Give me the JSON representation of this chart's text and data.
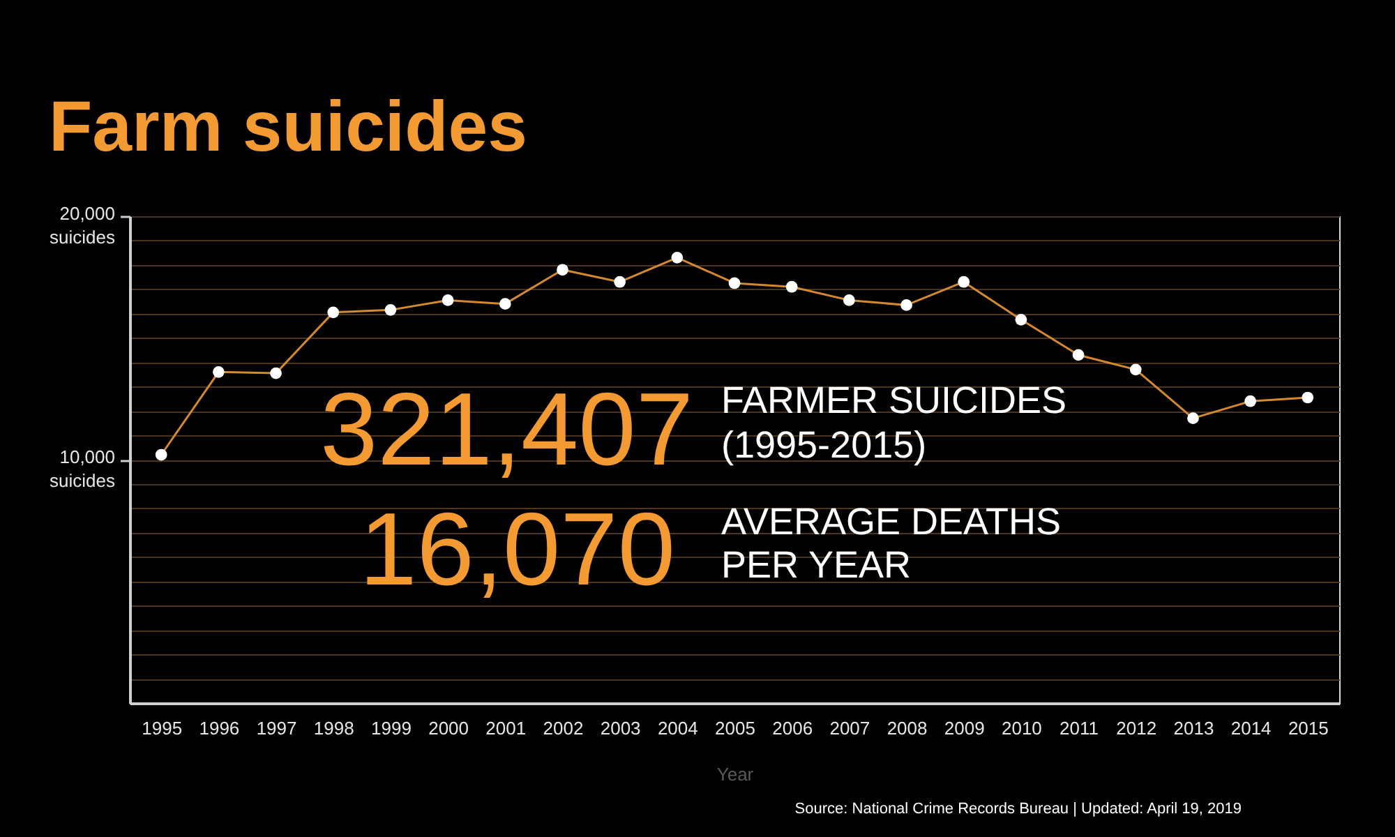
{
  "chart_data": {
    "type": "line",
    "title": "Farm suicides",
    "xlabel": "Year",
    "categories": [
      "1995",
      "1996",
      "1997",
      "1998",
      "1999",
      "2000",
      "2001",
      "2002",
      "2003",
      "2004",
      "2005",
      "2006",
      "2007",
      "2008",
      "2009",
      "2010",
      "2011",
      "2012",
      "2013",
      "2014",
      "2015"
    ],
    "values": [
      10200,
      13600,
      13550,
      16050,
      16150,
      16550,
      16400,
      17800,
      17300,
      18300,
      17250,
      17100,
      16550,
      16350,
      17300,
      15750,
      14300,
      13700,
      11700,
      12400,
      12550
    ],
    "color": "#d4892f",
    "marker": "circle",
    "grid": "y",
    "ylim": [
      0,
      20000
    ],
    "yticks": [
      {
        "value": 1000,
        "label": null
      },
      {
        "value": 2000,
        "label": null
      },
      {
        "value": 3000,
        "label": null
      },
      {
        "value": 4000,
        "label": null
      },
      {
        "value": 5000,
        "label": null
      },
      {
        "value": 6000,
        "label": null
      },
      {
        "value": 7000,
        "label": null
      },
      {
        "value": 8000,
        "label": null
      },
      {
        "value": 9000,
        "label": null
      },
      {
        "value": 10000,
        "label": "10,000\nsuicides"
      },
      {
        "value": 11000,
        "label": null
      },
      {
        "value": 12000,
        "label": null
      },
      {
        "value": 13000,
        "label": null
      },
      {
        "value": 14000,
        "label": null
      },
      {
        "value": 15000,
        "label": null
      },
      {
        "value": 16000,
        "label": null
      },
      {
        "value": 17000,
        "label": null
      },
      {
        "value": 18000,
        "label": null
      },
      {
        "value": 19000,
        "label": null
      },
      {
        "value": 20000,
        "label": "20,000\nsuicides"
      }
    ],
    "annotations": [
      "321,407",
      "FARMER SUICIDES\n(1995-2015)",
      "16,070",
      "AVERAGE DEATHS\nPER YEAR",
      "Source: National Crime Records Bureau | Updated: April 19, 2019"
    ]
  }
}
